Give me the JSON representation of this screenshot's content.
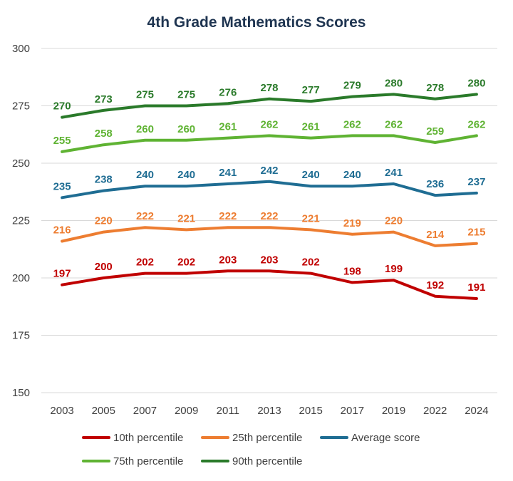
{
  "chart_data": {
    "type": "line",
    "title": "4th Grade Mathematics Scores",
    "xlabel": "",
    "ylabel": "",
    "categories": [
      "2003",
      "2005",
      "2007",
      "2009",
      "2011",
      "2013",
      "2015",
      "2017",
      "2019",
      "2022",
      "2024"
    ],
    "y_ticks": [
      "150",
      "175",
      "200",
      "225",
      "250",
      "275",
      "300"
    ],
    "ylim": [
      150,
      300
    ],
    "grid": true,
    "legend_position": "bottom",
    "series": [
      {
        "name": "10th percentile",
        "color": "#c00000",
        "values": [
          197,
          200,
          202,
          202,
          203,
          203,
          202,
          198,
          199,
          192,
          191
        ]
      },
      {
        "name": "25th percentile",
        "color": "#ed7d31",
        "values": [
          216,
          220,
          222,
          221,
          222,
          222,
          221,
          219,
          220,
          214,
          215
        ]
      },
      {
        "name": "Average score",
        "color": "#1f6d93",
        "values": [
          235,
          238,
          240,
          240,
          241,
          242,
          240,
          240,
          241,
          236,
          237
        ]
      },
      {
        "name": "75th percentile",
        "color": "#5fb333",
        "values": [
          255,
          258,
          260,
          260,
          261,
          262,
          261,
          262,
          262,
          259,
          262
        ]
      },
      {
        "name": "90th percentile",
        "color": "#2a7a2a",
        "values": [
          270,
          273,
          275,
          275,
          276,
          278,
          277,
          279,
          280,
          278,
          280
        ]
      }
    ]
  }
}
